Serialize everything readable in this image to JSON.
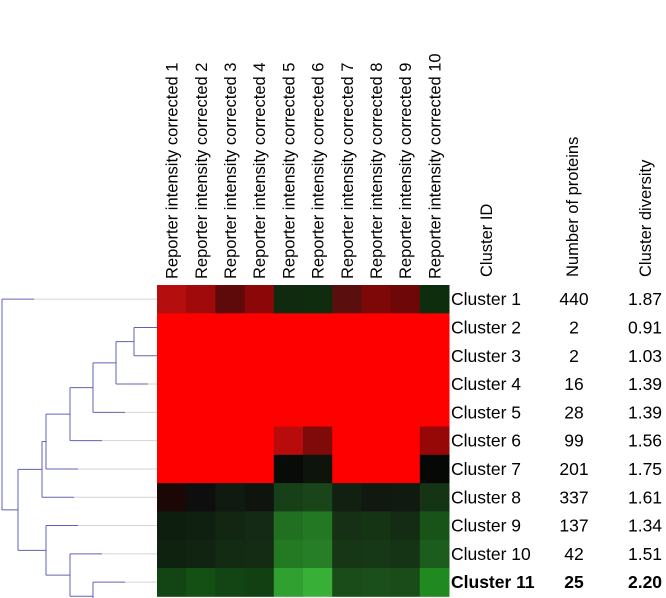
{
  "chart_data": {
    "type": "heatmap",
    "columns": [
      "Reporter intensity corrected 1",
      "Reporter intensity corrected 2",
      "Reporter intensity corrected 3",
      "Reporter intensity corrected 4",
      "Reporter intensity corrected 5",
      "Reporter intensity corrected 6",
      "Reporter intensity corrected 7",
      "Reporter intensity corrected 8",
      "Reporter intensity corrected 9",
      "Reporter intensity corrected 10"
    ],
    "table_headers": [
      "Cluster ID",
      "Number of proteins",
      "Cluster diversity"
    ],
    "rows": [
      {
        "id": "Cluster 1",
        "proteins": "440",
        "diversity": "1.87"
      },
      {
        "id": "Cluster 2",
        "proteins": "2",
        "diversity": "0.91"
      },
      {
        "id": "Cluster 3",
        "proteins": "2",
        "diversity": "1.03"
      },
      {
        "id": "Cluster 4",
        "proteins": "16",
        "diversity": "1.39"
      },
      {
        "id": "Cluster 5",
        "proteins": "28",
        "diversity": "1.39"
      },
      {
        "id": "Cluster 6",
        "proteins": "99",
        "diversity": "1.56"
      },
      {
        "id": "Cluster 7",
        "proteins": "201",
        "diversity": "1.75"
      },
      {
        "id": "Cluster 8",
        "proteins": "337",
        "diversity": "1.61"
      },
      {
        "id": "Cluster 9",
        "proteins": "137",
        "diversity": "1.34"
      },
      {
        "id": "Cluster 10",
        "proteins": "42",
        "diversity": "1.51"
      },
      {
        "id": "Cluster 11",
        "proteins": "25",
        "diversity": "2.20",
        "highlight": true
      }
    ],
    "cell_colors": [
      [
        "#b40e0e",
        "#a00a0a",
        "#5e0a0a",
        "#8c0808",
        "#0f2a0f",
        "#0f2c0f",
        "#5a0e0e",
        "#7c0808",
        "#6e0808",
        "#0d2d0d"
      ],
      [
        "#ff0000",
        "#ff0000",
        "#ff0000",
        "#ff0000",
        "#ff0000",
        "#ff0000",
        "#ff0000",
        "#ff0000",
        "#ff0000",
        "#ff0000"
      ],
      [
        "#ff0000",
        "#ff0000",
        "#ff0000",
        "#ff0000",
        "#ff0000",
        "#ff0000",
        "#ff0000",
        "#ff0000",
        "#ff0000",
        "#ff0000"
      ],
      [
        "#ff0000",
        "#ff0000",
        "#ff0000",
        "#ff0000",
        "#ff0000",
        "#ff0000",
        "#ff0000",
        "#ff0000",
        "#ff0000",
        "#ff0000"
      ],
      [
        "#ff0000",
        "#ff0000",
        "#ff0000",
        "#ff0000",
        "#ff0000",
        "#ff0000",
        "#ff0000",
        "#ff0000",
        "#ff0000",
        "#ff0000"
      ],
      [
        "#ff0000",
        "#ff0000",
        "#ff0000",
        "#ff0000",
        "#b80c0c",
        "#7e0a0a",
        "#ff0000",
        "#ff0000",
        "#ff0000",
        "#960808"
      ],
      [
        "#ff0000",
        "#ff0000",
        "#ff0000",
        "#ff0000",
        "#080b08",
        "#0c140c",
        "#ff0000",
        "#ff0000",
        "#ff0000",
        "#050805"
      ],
      [
        "#1c0707",
        "#0e0e0e",
        "#101a10",
        "#0f140f",
        "#184018",
        "#1a441a",
        "#122012",
        "#101810",
        "#101a10",
        "#143414"
      ],
      [
        "#0e1e0e",
        "#102010",
        "#122612",
        "#142a14",
        "#217021",
        "#237823",
        "#153015",
        "#143414",
        "#132c13",
        "#185418"
      ],
      [
        "#0f220f",
        "#112411",
        "#132a13",
        "#142c14",
        "#237a23",
        "#267e26",
        "#163616",
        "#163816",
        "#153415",
        "#1c5c1c"
      ],
      [
        "#134413",
        "#145014",
        "#134413",
        "#124012",
        "#30a030",
        "#38b038",
        "#1a4c1a",
        "#1a4e1a",
        "#1a4c1a",
        "#208a20"
      ]
    ],
    "colors": {
      "dendrogram": "#6060b8",
      "guide_lines": "#d4d4d4",
      "highlight_text": "#ff0000",
      "text": "#000000"
    }
  }
}
